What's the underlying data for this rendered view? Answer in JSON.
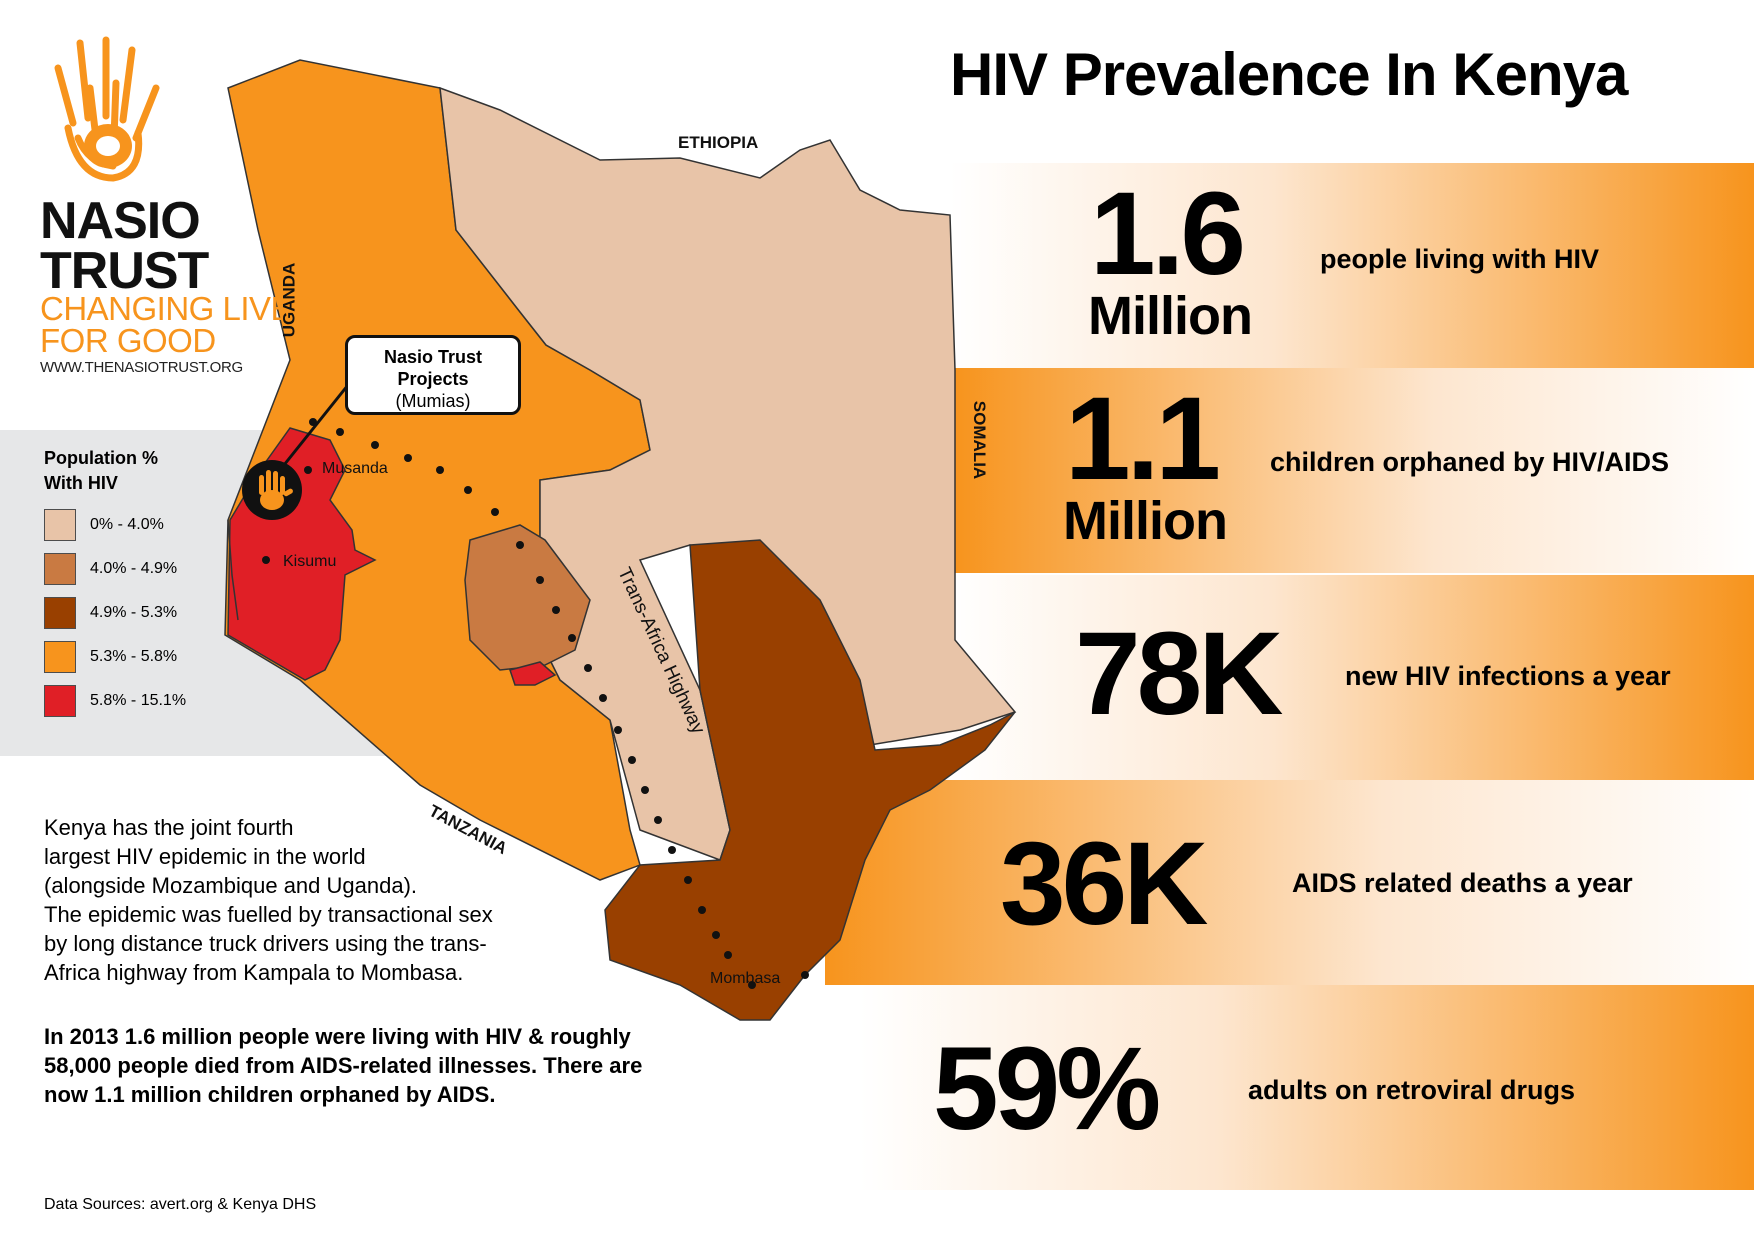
{
  "logo": {
    "name_line1": "NASIO",
    "name_line2": "TRUST",
    "tag_line1": "CHANGING LIVES",
    "tag_line2": "FOR GOOD",
    "url": "WWW.THENASIOTRUST.ORG",
    "hand_icon": "hand-print-icon",
    "accent_color": "#f7941d"
  },
  "title": "HIV Prevalence In Kenya",
  "legend": {
    "title_line1": "Population %",
    "title_line2": "With HIV",
    "items": [
      {
        "label": "0% - 4.0%",
        "color": "#e8c4a8"
      },
      {
        "label": "4.0% - 4.9%",
        "color": "#c97a42"
      },
      {
        "label": "4.9% - 5.3%",
        "color": "#994000"
      },
      {
        "label": "5.3% - 5.8%",
        "color": "#f7941d"
      },
      {
        "label": "5.8% - 15.1%",
        "color": "#e01f26"
      }
    ]
  },
  "map": {
    "countries": {
      "ethiopia": "ETHIOPIA",
      "uganda": "UGANDA",
      "somalia": "SOMALIA",
      "tanzania": "TANZANIA"
    },
    "callout_line1": "Nasio Trust",
    "callout_line2": "Projects",
    "callout_line3": "(Mumias)",
    "cities": {
      "musanda": "Musanda",
      "kisumu": "Kisumu",
      "mombasa": "Mombasa"
    },
    "highway": "Trans-Africa Highway"
  },
  "stats": [
    {
      "number": "1.6",
      "sub": "Million",
      "desc": "people living with HIV"
    },
    {
      "number": "1.1",
      "sub": "Million",
      "desc": "children orphaned by HIV/AIDS"
    },
    {
      "number": "78K",
      "sub": "",
      "desc": "new HIV infections a year"
    },
    {
      "number": "36K",
      "sub": "",
      "desc": "AIDS related deaths a year"
    },
    {
      "number": "59%",
      "sub": "",
      "desc": "adults on retroviral drugs"
    }
  ],
  "info": {
    "para_lines": [
      "Kenya has the joint fourth",
      "largest HIV epidemic in the world",
      "(alongside Mozambique and Uganda).",
      "The epidemic was fuelled by transactional sex",
      "by long distance truck drivers using the trans-",
      "Africa highway from Kampala to Mombasa."
    ],
    "bold_lines": [
      "In 2013 1.6 million people were living with HIV & roughly",
      "58,000 people died from AIDS-related illnesses. There are",
      "now 1.1 million children orphaned by AIDS."
    ]
  },
  "sources": "Data Sources: avert.org & Kenya DHS"
}
